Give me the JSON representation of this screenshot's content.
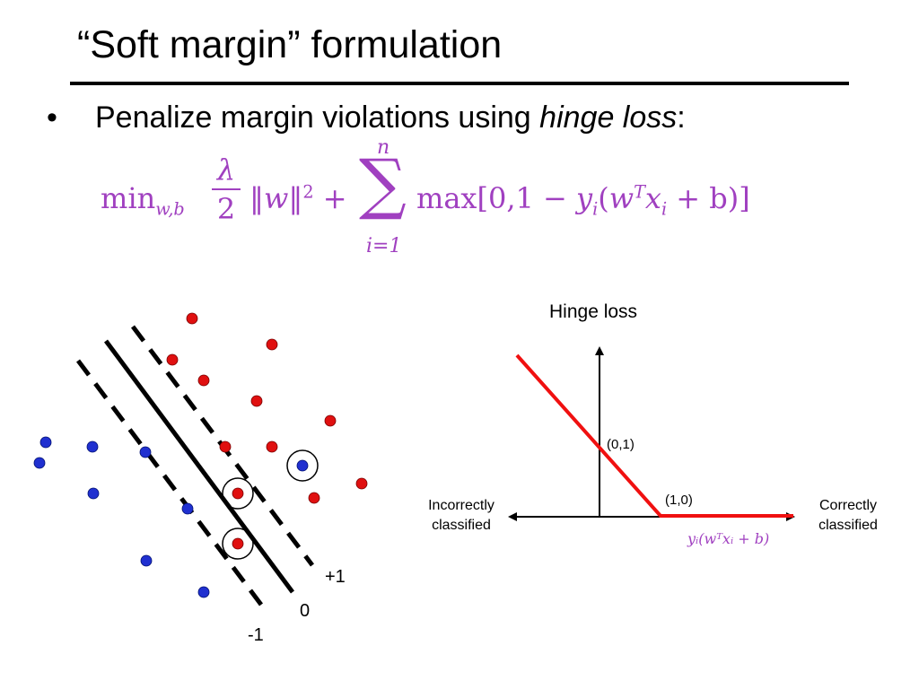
{
  "slide": {
    "title": "“Soft margin” formulation",
    "bullet_symbol": "•",
    "bullet_text": "Penalize margin violations using ",
    "bullet_emphasis": "hinge loss",
    "bullet_suffix": ":"
  },
  "formula": {
    "min": "min",
    "min_sub": "w,b",
    "lambda": "λ",
    "two": "2",
    "norm": "‖",
    "w": "w",
    "sq": "2",
    "plus": "+",
    "sigma": "∑",
    "upper": "n",
    "lower": "i=1",
    "max_expr": "max[0,1 − ",
    "y": "y",
    "i": "i",
    "paren": "(",
    "T": "T",
    "x": "x",
    "b_term": " + b)]"
  },
  "left_plot": {
    "label_plus1": "+1",
    "label_zero": "0",
    "label_minus1": "-1"
  },
  "hinge_plot": {
    "title": "Hinge loss",
    "left_axis_label": [
      "Incorrectly",
      "classified"
    ],
    "right_axis_label": [
      "Correctly",
      "classified"
    ],
    "point_01": "(0,1)",
    "point_10": "(1,0)",
    "x_label_text": "yᵢ(wᵀxᵢ + b)"
  },
  "colors": {
    "red_point": "#e01010",
    "blue_point": "#2030d0",
    "hinge_line": "#f01010",
    "formula": "#a040c0"
  }
}
